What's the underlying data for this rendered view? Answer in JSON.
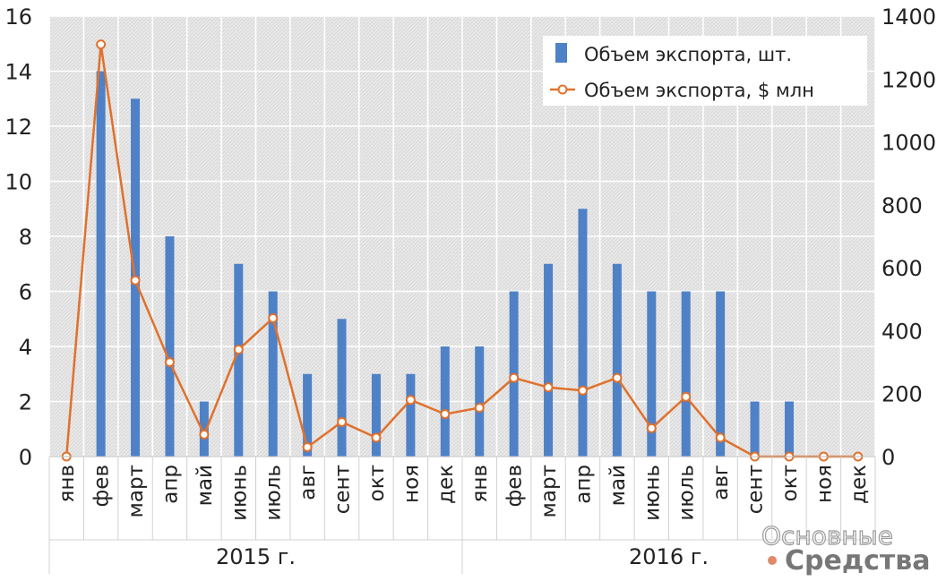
{
  "chart_data": {
    "type": "bar+line",
    "title": "",
    "categories": [
      "янв",
      "фев",
      "март",
      "апр",
      "май",
      "июнь",
      "июль",
      "авг",
      "сент",
      "окт",
      "ноя",
      "дек",
      "янв",
      "фев",
      "март",
      "апр",
      "май",
      "июнь",
      "июль",
      "авг",
      "сент",
      "окт",
      "ноя",
      "дек"
    ],
    "groups": [
      {
        "label": "2015 г.",
        "start": 0,
        "end": 11
      },
      {
        "label": "2016 г.",
        "start": 12,
        "end": 23
      }
    ],
    "series": [
      {
        "name": "Объем экспорта, шт.",
        "type": "bar",
        "axis": "left",
        "color": "#4f81c7",
        "values": [
          0,
          14,
          13,
          8,
          2,
          7,
          6,
          3,
          5,
          3,
          3,
          4,
          4,
          6,
          7,
          9,
          7,
          6,
          6,
          6,
          2,
          2,
          0,
          0
        ]
      },
      {
        "name": "Объем экспорта, $ млн",
        "type": "line",
        "axis": "right",
        "color": "#e0712c",
        "values": [
          0,
          1310,
          560,
          300,
          70,
          340,
          440,
          30,
          110,
          60,
          180,
          135,
          155,
          250,
          220,
          210,
          250,
          90,
          190,
          60,
          0,
          0,
          0,
          0
        ]
      }
    ],
    "y_left": {
      "min": 0,
      "max": 16,
      "ticks": [
        "0",
        "2",
        "4",
        "6",
        "8",
        "10",
        "12",
        "14",
        "16"
      ]
    },
    "y_right": {
      "min": 0,
      "max": 1400,
      "ticks": [
        "0",
        "200",
        "400",
        "600",
        "800",
        "1000",
        "1200",
        "1400"
      ]
    },
    "grid": true,
    "legend_position": "top-right"
  },
  "watermark": {
    "line1": "Основные",
    "line2": "Средства",
    "dot_color": "#e08a6a"
  }
}
